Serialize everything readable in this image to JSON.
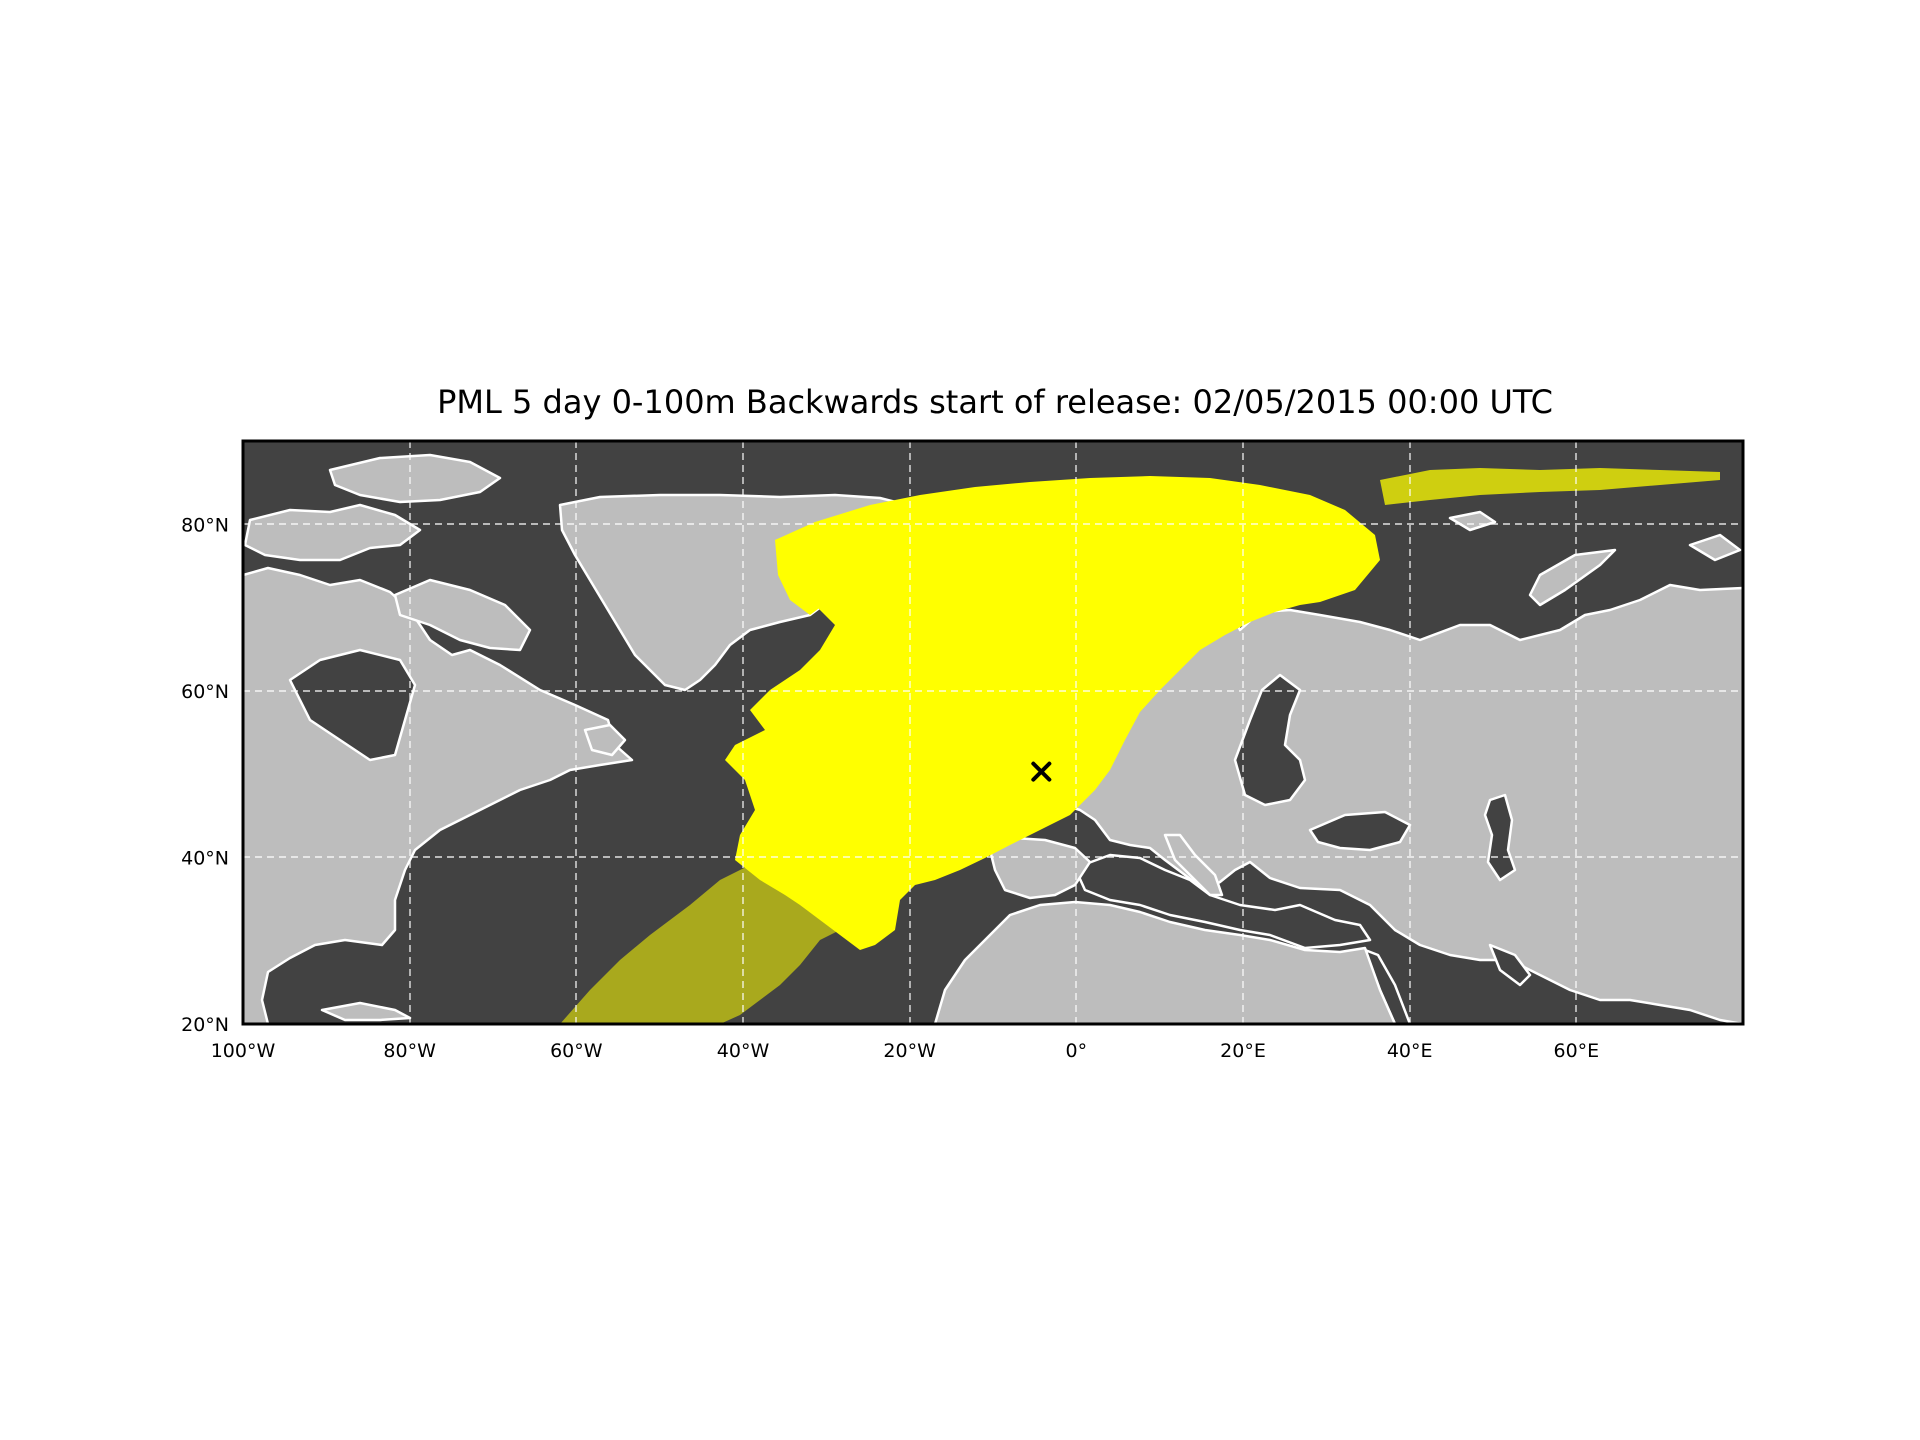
{
  "title": "PML 5 day 0-100m Backwards start of release: 02/05/2015 00:00 UTC",
  "map": {
    "projection": "equirectangular",
    "lon_range": [
      -100,
      80
    ],
    "lat_range": [
      20,
      90
    ],
    "ocean_color": "#424242",
    "land_color": "#bdbdbd",
    "coastline_color": "#ffffff",
    "border_color": "#ffffff",
    "particle_color": "#ffff00",
    "gridlines": "dashed white",
    "lon_ticks": [
      {
        "value": -100,
        "label": "100°W"
      },
      {
        "value": -80,
        "label": "80°W"
      },
      {
        "value": -60,
        "label": "60°W"
      },
      {
        "value": -40,
        "label": "40°W"
      },
      {
        "value": -20,
        "label": "20°W"
      },
      {
        "value": 0,
        "label": "0°"
      },
      {
        "value": 20,
        "label": "20°E"
      },
      {
        "value": 40,
        "label": "40°E"
      },
      {
        "value": 60,
        "label": "60°E"
      }
    ],
    "lat_ticks": [
      {
        "value": 20,
        "label": "20°N"
      },
      {
        "value": 40,
        "label": "40°N"
      },
      {
        "value": 60,
        "label": "60°N"
      },
      {
        "value": 80,
        "label": "80°N"
      }
    ],
    "release_marker": {
      "lon": -4.2,
      "lat": 50.3,
      "symbol": "x",
      "color": "#000000"
    }
  }
}
